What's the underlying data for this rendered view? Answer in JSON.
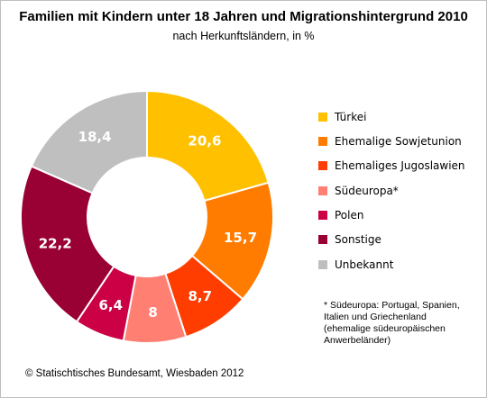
{
  "title": "Familien mit Kindern unter 18 Jahren und Migrationshintergrund 2010",
  "subtitle": "nach Herkunftsländern,  in %",
  "chart_data": {
    "type": "pie",
    "donut": true,
    "title": "Familien mit Kindern unter 18 Jahren und Migrationshintergrund 2010",
    "subtitle": "nach Herkunftsländern,  in %",
    "legend_position": "right",
    "slices": [
      {
        "name": "Türkei",
        "value": 20.6,
        "label": "20,6",
        "color": "#ffc000"
      },
      {
        "name": "Ehemalige Sowjetunion",
        "value": 15.7,
        "label": "15,7",
        "color": "#ff7c00"
      },
      {
        "name": "Ehemaliges Jugoslawien",
        "value": 8.7,
        "label": "8,7",
        "color": "#ff3d00"
      },
      {
        "name": "Südeuropa*",
        "value": 8,
        "label": "8",
        "color": "#ff7f73"
      },
      {
        "name": "Polen",
        "value": 6.4,
        "label": "6,4",
        "color": "#cc0044"
      },
      {
        "name": "Sonstige",
        "value": 22.2,
        "label": "22,2",
        "color": "#990033"
      },
      {
        "name": "Unbekannt",
        "value": 18.4,
        "label": "18,4",
        "color": "#bfbfbf"
      }
    ]
  },
  "footnote": {
    "lines": [
      "* Südeuropa: Portugal, Spanien,",
      "Italien und Griechenland",
      "(ehemalige südeuropäischen",
      "Anwerbeländer)"
    ]
  },
  "source": "© Statischtisches Bundesamt, Wiesbaden 2012"
}
